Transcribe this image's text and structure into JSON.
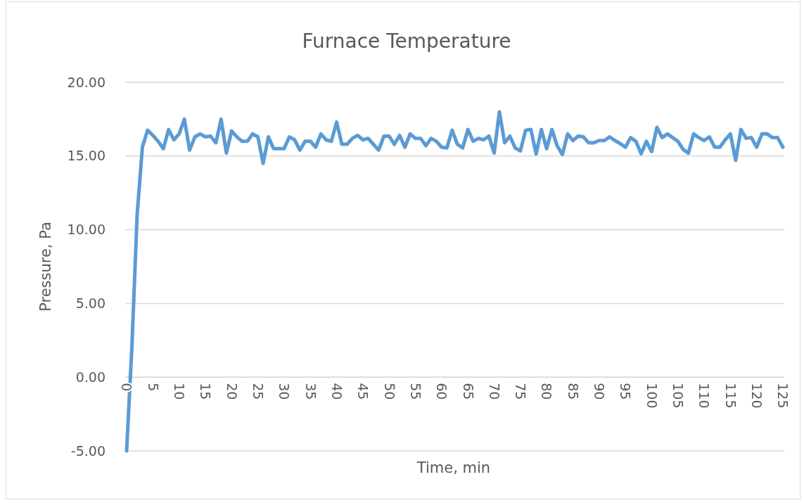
{
  "chart_data": {
    "type": "line",
    "title": "Furnace Temperature",
    "xlabel": "Time, min",
    "ylabel": "Pressure, Pa",
    "x": [
      0,
      1,
      2,
      3,
      4,
      5,
      6,
      7,
      8,
      9,
      10,
      11,
      12,
      13,
      14,
      15,
      16,
      17,
      18,
      19,
      20,
      21,
      22,
      23,
      24,
      25,
      26,
      27,
      28,
      29,
      30,
      31,
      32,
      33,
      34,
      35,
      36,
      37,
      38,
      39,
      40,
      41,
      42,
      43,
      44,
      45,
      46,
      47,
      48,
      49,
      50,
      51,
      52,
      53,
      54,
      55,
      56,
      57,
      58,
      59,
      60,
      61,
      62,
      63,
      64,
      65,
      66,
      67,
      68,
      69,
      70,
      71,
      72,
      73,
      74,
      75,
      76,
      77,
      78,
      79,
      80,
      81,
      82,
      83,
      84,
      85,
      86,
      87,
      88,
      89,
      90,
      91,
      92,
      93,
      94,
      95,
      96,
      97,
      98,
      99,
      100,
      101,
      102,
      103,
      104,
      105,
      106,
      107,
      108,
      109,
      110,
      111,
      112,
      113,
      114,
      115,
      116,
      117,
      118,
      119,
      120,
      121,
      122,
      123,
      124,
      125
    ],
    "series": [
      {
        "color": "#5b9bd5",
        "values": [
          -5,
          2,
          11,
          15.6,
          16.75,
          16.4,
          16.0,
          15.5,
          16.8,
          16.1,
          16.5,
          17.5,
          15.4,
          16.3,
          16.5,
          16.3,
          16.35,
          15.9,
          17.5,
          15.2,
          16.7,
          16.3,
          16.0,
          16.0,
          16.5,
          16.3,
          14.5,
          16.3,
          15.5,
          15.5,
          15.5,
          16.3,
          16.1,
          15.4,
          16.0,
          16.0,
          15.6,
          16.5,
          16.1,
          16.0,
          17.3,
          15.8,
          15.8,
          16.2,
          16.4,
          16.1,
          16.2,
          15.8,
          15.4,
          16.35,
          16.35,
          15.8,
          16.4,
          15.6,
          16.5,
          16.2,
          16.2,
          15.7,
          16.2,
          16.0,
          15.6,
          15.55,
          16.75,
          15.8,
          15.55,
          16.8,
          16.0,
          16.2,
          16.1,
          16.35,
          15.2,
          18.0,
          15.9,
          16.35,
          15.55,
          15.35,
          16.75,
          16.8,
          15.15,
          16.8,
          15.5,
          16.8,
          15.7,
          15.1,
          16.5,
          16.05,
          16.35,
          16.3,
          15.9,
          15.9,
          16.05,
          16.05,
          16.3,
          16.05,
          15.85,
          15.6,
          16.25,
          16.0,
          15.15,
          16.0,
          15.3,
          16.95,
          16.25,
          16.5,
          16.25,
          16.0,
          15.45,
          15.2,
          16.5,
          16.25,
          16.05,
          16.3,
          15.6,
          15.6,
          16.1,
          16.5,
          14.7,
          16.8,
          16.2,
          16.25,
          15.6,
          16.5,
          16.5,
          16.25,
          16.25,
          15.6
        ]
      }
    ],
    "xlim": [
      0,
      125
    ],
    "xticks": [
      0,
      5,
      10,
      15,
      20,
      25,
      30,
      35,
      40,
      45,
      50,
      55,
      60,
      65,
      70,
      75,
      80,
      85,
      90,
      95,
      100,
      105,
      110,
      115,
      120,
      125
    ],
    "ylim": [
      -5,
      20
    ],
    "yticks": [
      {
        "value": -5,
        "label": "-5.00"
      },
      {
        "value": 0,
        "label": "0.00"
      },
      {
        "value": 5,
        "label": "5.00"
      },
      {
        "value": 10,
        "label": "10.00"
      },
      {
        "value": 15,
        "label": "15.00"
      },
      {
        "value": 20,
        "label": "20.00"
      }
    ],
    "grid": "y",
    "marker": "none",
    "line_style": "solid"
  }
}
